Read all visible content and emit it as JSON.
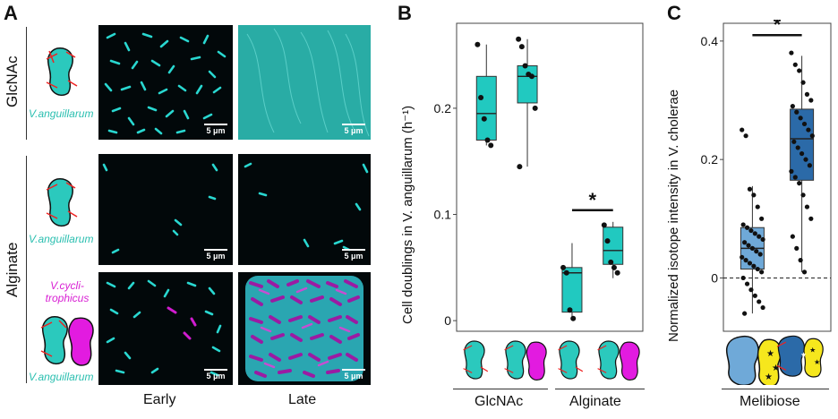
{
  "panel_a": {
    "letter": "A",
    "row_labels": {
      "glcnac": "GlcNAc",
      "alginate": "Alginate"
    },
    "species_anguillarum": "V.anguillarum",
    "species_cyclitrophicus": "V.cycli-\ntrophicus",
    "scale_bar": "5 μm",
    "col_labels": {
      "early": "Early",
      "late": "Late"
    }
  },
  "panel_b": {
    "letter": "B",
    "ylabel": "Cell doublings in V. anguillarum (h⁻¹)",
    "group_labels": {
      "glcnac": "GlcNAc",
      "alginate": "Alginate"
    },
    "significance": "*",
    "colors": {
      "box": "#21c9c0"
    }
  },
  "panel_c": {
    "letter": "C",
    "ylabel": "Normalized isotope intensity in V. cholerae",
    "group_label": "Melibiose",
    "significance": "*",
    "colors": {
      "box_light": "#6fa9d8",
      "box_dark": "#2b6aa8"
    }
  },
  "chart_data": [
    {
      "type": "box",
      "panel": "B",
      "ylabel": "Cell doublings in V. anguillarum (h⁻¹)",
      "ylim": [
        -0.01,
        0.28
      ],
      "yticks": [
        0,
        0.1,
        0.2
      ],
      "groups": [
        "GlcNAc",
        "GlcNAc",
        "Alginate",
        "Alginate"
      ],
      "boxes": [
        {
          "min": 0.165,
          "q1": 0.17,
          "median": 0.195,
          "q3": 0.23,
          "max": 0.26,
          "points": [
            0.26,
            0.21,
            0.19,
            0.17,
            0.165
          ]
        },
        {
          "min": 0.145,
          "q1": 0.205,
          "median": 0.23,
          "q3": 0.24,
          "max": 0.265,
          "points": [
            0.265,
            0.258,
            0.24,
            0.232,
            0.23,
            0.2,
            0.145
          ]
        },
        {
          "min": 0.002,
          "q1": 0.008,
          "median": 0.045,
          "q3": 0.05,
          "max": 0.073,
          "points": [
            0.05,
            0.045,
            0.01,
            0.002
          ]
        },
        {
          "min": 0.04,
          "q1": 0.053,
          "median": 0.066,
          "q3": 0.088,
          "max": 0.093,
          "points": [
            0.09,
            0.075,
            0.055,
            0.05,
            0.045
          ]
        }
      ]
    },
    {
      "type": "box",
      "panel": "C",
      "ylabel": "Normalized isotope intensity in V. cholerae",
      "ylim": [
        -0.09,
        0.43
      ],
      "yticks": [
        0,
        0.2,
        0.4
      ],
      "group": "Melibiose",
      "boxes": [
        {
          "min": -0.06,
          "q1": 0.015,
          "median": 0.05,
          "q3": 0.085,
          "max": 0.155,
          "points": [
            0.25,
            0.24,
            0.15,
            0.14,
            0.12,
            0.1,
            0.09,
            0.085,
            0.08,
            0.075,
            0.07,
            0.065,
            0.06,
            0.055,
            0.05,
            0.045,
            0.04,
            0.035,
            0.03,
            0.025,
            0.02,
            0.015,
            0.01,
            0.0,
            -0.01,
            -0.02,
            -0.03,
            -0.04,
            -0.05,
            -0.06
          ]
        },
        {
          "min": 0.01,
          "q1": 0.165,
          "median": 0.235,
          "q3": 0.285,
          "max": 0.375,
          "points": [
            0.38,
            0.36,
            0.35,
            0.33,
            0.31,
            0.3,
            0.29,
            0.28,
            0.27,
            0.26,
            0.25,
            0.24,
            0.23,
            0.22,
            0.21,
            0.2,
            0.19,
            0.18,
            0.17,
            0.16,
            0.14,
            0.12,
            0.1,
            0.07,
            0.05,
            0.03,
            0.01
          ]
        }
      ]
    }
  ]
}
